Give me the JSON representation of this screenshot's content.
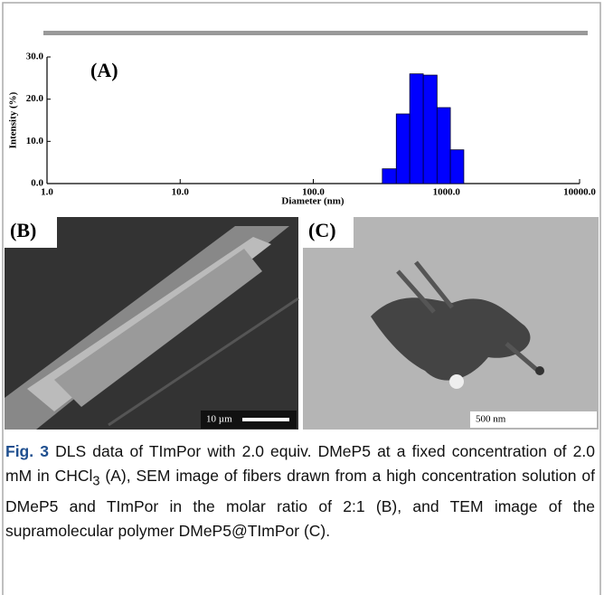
{
  "chart_data": {
    "type": "histogram",
    "annotation": "(A)",
    "xlabel": "Diameter (nm)",
    "ylabel": "Intensity (%)",
    "bins": [
      330,
      420,
      530,
      670,
      850,
      1070,
      1350
    ],
    "values": [
      3.5,
      16.5,
      26,
      25.7,
      18,
      8
    ],
    "color": "#0000ff",
    "xscale": "log",
    "xlim": [
      1,
      10000
    ],
    "xticks": [
      {
        "value": 1,
        "label": "1.0"
      },
      {
        "value": 10,
        "label": "10.0"
      },
      {
        "value": 100,
        "label": "100.0"
      },
      {
        "value": 1000,
        "label": "1000.0"
      },
      {
        "value": 10000,
        "label": "10000.0"
      }
    ],
    "ylim": [
      0,
      30
    ],
    "yticks": [
      {
        "value": 0,
        "label": "0.0"
      },
      {
        "value": 10,
        "label": "10.0"
      },
      {
        "value": 20,
        "label": "20.0"
      },
      {
        "value": 30,
        "label": "30.0"
      }
    ]
  },
  "panels": [
    {
      "label": "(B)",
      "scale_bar": "10 µm"
    },
    {
      "label": "(C)",
      "scale_bar": "500 nm"
    }
  ],
  "caption": {
    "label": "Fig. 3",
    "text_1": " DLS data of TImPor with 2.0 equiv. DMeP5 at a fixed concentration of 2.0 mM in CHCl",
    "subscript": "3",
    "text_2": " (A), SEM image of fibers drawn from a high concentration solution of DMeP5 and TImPor in the molar ratio of 2:1 (B), and TEM image of the supramolecular polymer DMeP5@TImPor (C)."
  }
}
